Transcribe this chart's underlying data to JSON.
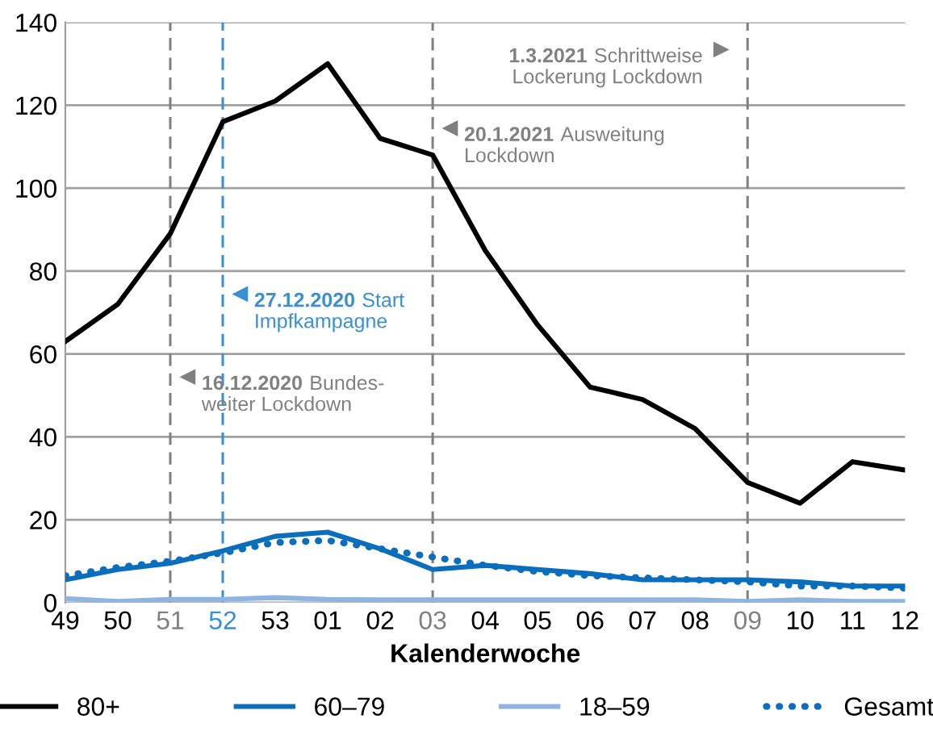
{
  "chart_data": {
    "type": "line",
    "xlabel": "Kalenderwoche",
    "categories": [
      "49",
      "50",
      "51",
      "52",
      "53",
      "01",
      "02",
      "03",
      "04",
      "05",
      "06",
      "07",
      "08",
      "09",
      "10",
      "11",
      "12"
    ],
    "series": [
      {
        "name": "80+",
        "color": "#000000",
        "line_style": "solid",
        "values": [
          63,
          72,
          89,
          116,
          121,
          130,
          112,
          108,
          85,
          67,
          52,
          49,
          42,
          29,
          24,
          34,
          32
        ]
      },
      {
        "name": "60–79",
        "color": "#0a6ebd",
        "line_style": "solid",
        "values": [
          5.5,
          8,
          9.5,
          12.5,
          16,
          17,
          13,
          8,
          9,
          8,
          7,
          5.5,
          5.5,
          5.5,
          5,
          4,
          4
        ]
      },
      {
        "name": "18–59",
        "color": "#8fb4e0",
        "line_style": "solid",
        "values": [
          1,
          0.3,
          0.8,
          0.8,
          1.2,
          0.8,
          0.7,
          0.7,
          0.7,
          0.7,
          0.7,
          0.7,
          0.7,
          0.3,
          0.7,
          0.3,
          0.3
        ]
      },
      {
        "name": "Gesamt",
        "color": "#0a6ebd",
        "line_style": "dotted",
        "values": [
          6.5,
          8.5,
          10,
          12,
          14.5,
          15,
          13,
          11,
          9,
          7.5,
          6.5,
          6,
          5.5,
          5,
          4,
          4,
          3.5
        ]
      }
    ],
    "ylim": [
      0,
      140
    ],
    "yticks": [
      0,
      20,
      40,
      60,
      80,
      100,
      120,
      140
    ],
    "grid": "y",
    "legend": "bottom",
    "marker": "none",
    "ref_lines": [
      {
        "axis": "x",
        "value": "51",
        "label": "16.12.2020 Bundes-\nweiter Lockdown",
        "color": "#808080",
        "line_style": "dashed"
      },
      {
        "axis": "x",
        "value": "52",
        "label": "27.12.2020 Start\nImpfkampagne",
        "color": "#3a8fd0",
        "line_style": "dashed"
      },
      {
        "axis": "x",
        "value": "03",
        "label": "20.1.2021 Ausweitung\nLockdown",
        "color": "#808080",
        "line_style": "dashed"
      },
      {
        "axis": "x",
        "value": "09",
        "label": "1.3.2021 Schrittweise\nLockerung Lockdown",
        "color": "#808080",
        "line_style": "dashed"
      }
    ]
  }
}
